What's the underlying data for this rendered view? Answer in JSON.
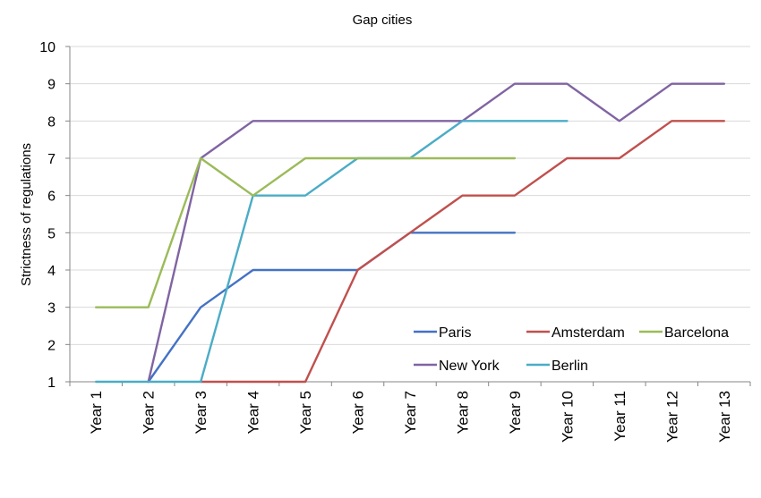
{
  "chart_data": {
    "type": "line",
    "title": "Gap cities",
    "xlabel": "",
    "ylabel": "Strictness of regulations",
    "ylim": [
      1,
      10
    ],
    "yticks": [
      1,
      2,
      3,
      4,
      5,
      6,
      7,
      8,
      9,
      10
    ],
    "grid": "horizontal",
    "legend_position": "bottom-right",
    "categories": [
      "Year 1",
      "Year 2",
      "Year 3",
      "Year 4",
      "Year 5",
      "Year 6",
      "Year 7",
      "Year 8",
      "Year 9",
      "Year 10",
      "Year 11",
      "Year 12",
      "Year 13"
    ],
    "series": [
      {
        "name": "Paris",
        "color": "#4472C4",
        "values": [
          null,
          1,
          3,
          4,
          4,
          4,
          5,
          5,
          5,
          null,
          null,
          null,
          null
        ]
      },
      {
        "name": "Amsterdam",
        "color": "#C0504D",
        "values": [
          null,
          null,
          1,
          1,
          1,
          4,
          5,
          6,
          6,
          7,
          7,
          8,
          8
        ]
      },
      {
        "name": "Barcelona",
        "color": "#9BBB59",
        "values": [
          3,
          3,
          7,
          6,
          7,
          7,
          7,
          7,
          7,
          null,
          null,
          null,
          null
        ]
      },
      {
        "name": "New York",
        "color": "#8064A2",
        "values": [
          null,
          1,
          7,
          8,
          8,
          8,
          8,
          8,
          9,
          9,
          8,
          9,
          9
        ]
      },
      {
        "name": "Berlin",
        "color": "#4BACC6",
        "values": [
          1,
          1,
          1,
          6,
          6,
          7,
          7,
          8,
          8,
          8,
          null,
          null,
          null
        ]
      }
    ]
  }
}
